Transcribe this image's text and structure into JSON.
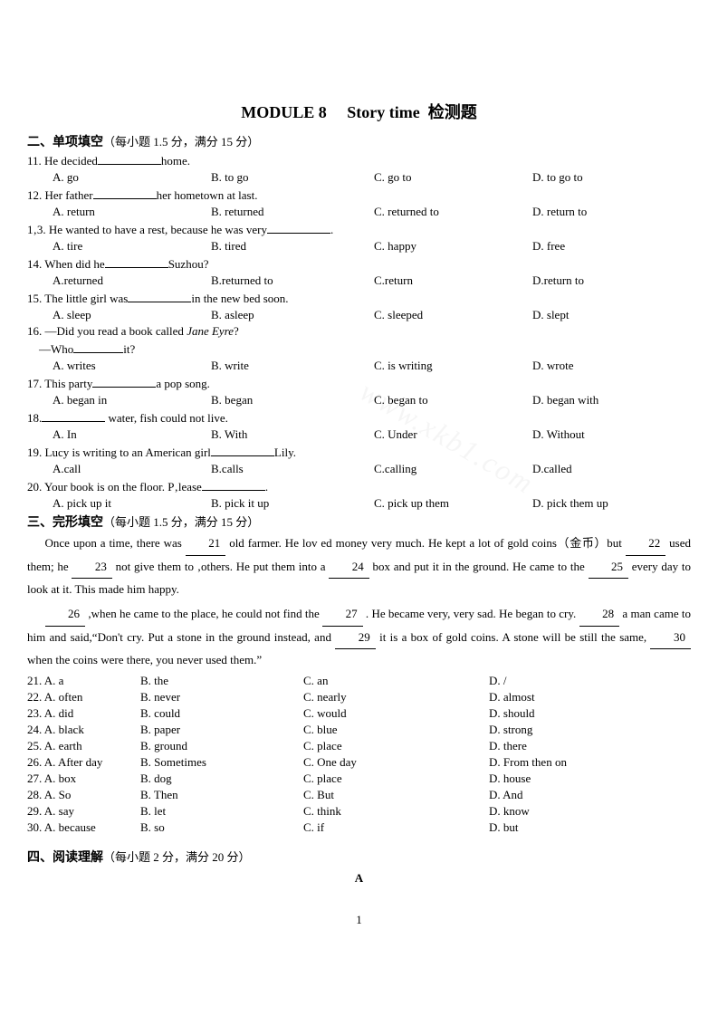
{
  "title": "MODULE 8  Story time 检测题",
  "section2": {
    "head": "二、单项填空",
    "sub": "（每小题 1.5 分，满分 15 分）"
  },
  "questions": [
    {
      "n": "11",
      "pre": "He decided",
      "post": "home.",
      "a": "A. go",
      "b": "B. to go",
      "c": "C. go to",
      "d": "D. to go to"
    },
    {
      "n": "12",
      "pre": "Her father",
      "post": "her hometown at last.",
      "a": "A. return",
      "b": "B. returned",
      "c": "C. returned to",
      "d": "D. return to"
    },
    {
      "n": "1‚3",
      "pre": "He wanted to have a rest, because he was very",
      "post": ".",
      "a": "A. tire",
      "b": "B. tired",
      "c": "C. happy",
      "d": "D. free"
    },
    {
      "n": "14",
      "pre": "When did he",
      "post": "Suzhou?",
      "a": "A.returned",
      "b": "B.returned to",
      "c": "C.return",
      "d": "D.return to"
    },
    {
      "n": "15",
      "pre": "The little girl was",
      "post": "in the new bed soon.",
      "a": "A. sleep",
      "b": "B. asleep",
      "c": "C. sleeped",
      "d": "D. slept"
    },
    {
      "n": "16",
      "pre": "—Did you read a book called ",
      "ital": "Jane Eyre",
      "post": "?",
      "line2a": "—Who",
      "line2b": "it?",
      "a": "A. writes",
      "b": "B. write",
      "c": "C. is writing",
      "d": "D. wrote"
    },
    {
      "n": "17",
      "pre": "This party",
      "post": "a pop song.",
      "a": "A. began in",
      "b": "B. began",
      "c": "C. began to",
      "d": "D. began with"
    },
    {
      "n": "18",
      "pre": "",
      "post": " water, fish could not live.",
      "a": "A. In",
      "b": "B. With",
      "c": "C. Under",
      "d": "D. Without"
    },
    {
      "n": "19",
      "pre": "Lucy is writing to an American girl",
      "post": "Lily.",
      "a": "A.call",
      "b": "B.calls",
      "c": "C.calling",
      "d": "D.called"
    },
    {
      "n": "20",
      "pre": "Your book is on the floor. P‚lease",
      "post": ".",
      "a": "A. pick up it",
      "b": "B. pick it up",
      "c": "C. pick up them",
      "d": "D. pick them up"
    }
  ],
  "section3": {
    "head": "三、完形填空",
    "sub": "（每小题 1.5 分，满分 15 分）"
  },
  "passage": {
    "p1a": "Once upon a time, there was",
    "b21": "21",
    "p1b": "old farmer. He lov ed money very much. He kept a lot of gold coins（金币）but",
    "b22": "22",
    "p1c": "used them; he",
    "b23": "23",
    "p1d": "not give them to ‚others. He put them into a",
    "b24": "24",
    "p1e": "box and put it in the ground. He came to the",
    "b25": "25",
    "p1f": "every day to look at it. This made him happy.",
    "b26": "26",
    "p2a": ",when he came to the place, he could not find the",
    "b27": "27",
    "p2b": ". He became very, very sad. He began to cry.",
    "b28": "28",
    "p2c": "a man came to him and said,“Don't cry. Put a stone in the ground instead, and",
    "b29": "29",
    "p2d": "it is a box of gold coins. A stone will be still the same,",
    "b30": "30",
    "p2e": "when the coins were there, you never used them.”"
  },
  "cloze": [
    {
      "n": "21",
      "a": "A. a",
      "b": "B. the",
      "c": "C. an",
      "d": "D. /"
    },
    {
      "n": "22",
      "a": "A. often",
      "b": "B. never",
      "c": "C. nearly",
      "d": "D. almost"
    },
    {
      "n": "23",
      "a": "A. did",
      "b": "B. could",
      "c": "C. would",
      "d": "D. should"
    },
    {
      "n": "24",
      "a": "A. black",
      "b": "B. paper",
      "c": "C. blue",
      "d": "D. strong"
    },
    {
      "n": "25",
      "a": "A. earth",
      "b": "B. ground",
      "c": "C. place",
      "d": "D. there"
    },
    {
      "n": "26",
      "a": "A. After day",
      "b": "B. Sometimes",
      "c": "C. One day",
      "d": "D. From then on"
    },
    {
      "n": "27",
      "a": "A. box",
      "b": "B. dog",
      "c": "C. place",
      "d": "D. house"
    },
    {
      "n": "28",
      "a": "A. So",
      "b": "B. Then",
      "c": "C. But",
      "d": "D. And"
    },
    {
      "n": "29",
      "a": "A. say",
      "b": "B. let",
      "c": "C. think",
      "d": "D. know"
    },
    {
      "n": "30",
      "a": "A. because",
      "b": "B. so",
      "c": "C. if",
      "d": "D. but"
    }
  ],
  "section4": {
    "head": "四、阅读理解",
    "sub": "（每小题 2 分，满分 20 分）",
    "a": "A"
  },
  "pageNum": "1",
  "watermark": "www.xkb1.com"
}
